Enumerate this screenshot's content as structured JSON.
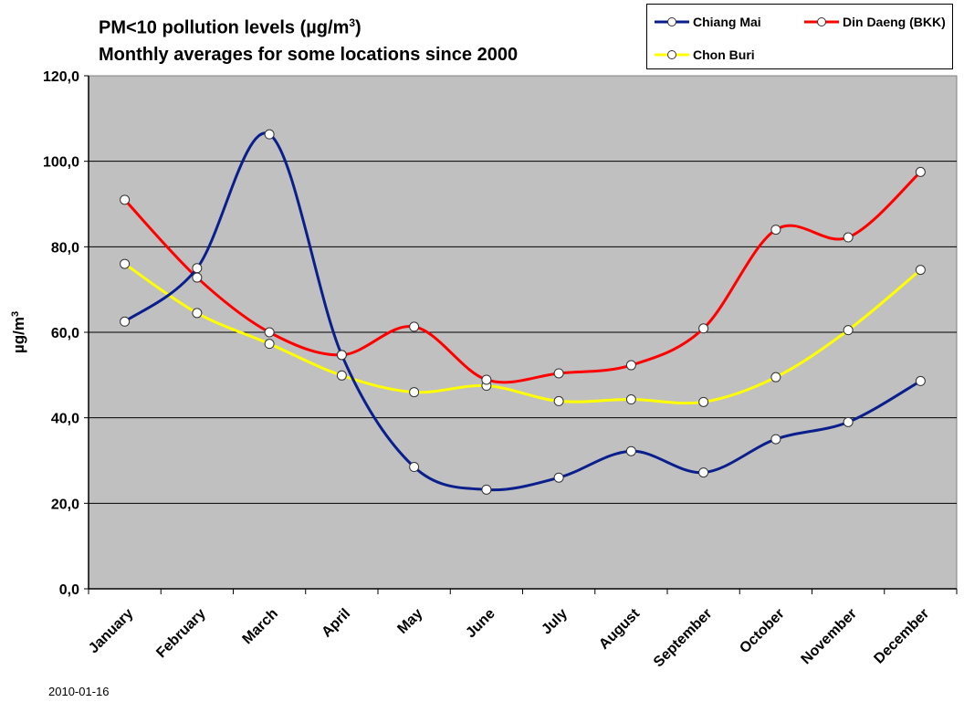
{
  "chart_data": {
    "type": "line",
    "title_line1": "PM<10 pollution levels (µg/m",
    "title_sup": "3",
    "title_line1_end": ")",
    "title_line2": "Monthly averages for some locations since 2000",
    "ylabel": "µg/m",
    "ylabel_sup": "3",
    "xlabel": "",
    "ylim": [
      0,
      120
    ],
    "yticks": [
      "0,0",
      "20,0",
      "40,0",
      "60,0",
      "80,0",
      "100,0",
      "120,0"
    ],
    "categories": [
      "January",
      "February",
      "March",
      "April",
      "May",
      "June",
      "July",
      "August",
      "September",
      "October",
      "November",
      "December"
    ],
    "grid": true,
    "legend_position": "top-right",
    "series": [
      {
        "name": "Chiang Mai",
        "color": "#0a1e8c",
        "values": [
          62.5,
          75.0,
          106.3,
          54.7,
          28.5,
          23.2,
          26.0,
          32.2,
          27.2,
          35.0,
          39.0,
          48.6
        ]
      },
      {
        "name": "Din Daeng (BKK)",
        "color": "#ff0000",
        "values": [
          91.0,
          72.8,
          60.0,
          54.7,
          61.3,
          48.9,
          50.4,
          52.3,
          60.9,
          84.0,
          82.2,
          97.5
        ]
      },
      {
        "name": "Chon Buri",
        "color": "#ffff00",
        "values": [
          76.0,
          64.5,
          57.3,
          49.9,
          46.0,
          47.5,
          43.9,
          44.3,
          43.7,
          49.5,
          60.5,
          74.6
        ]
      }
    ]
  },
  "footer": {
    "date": "2010-01-16"
  }
}
